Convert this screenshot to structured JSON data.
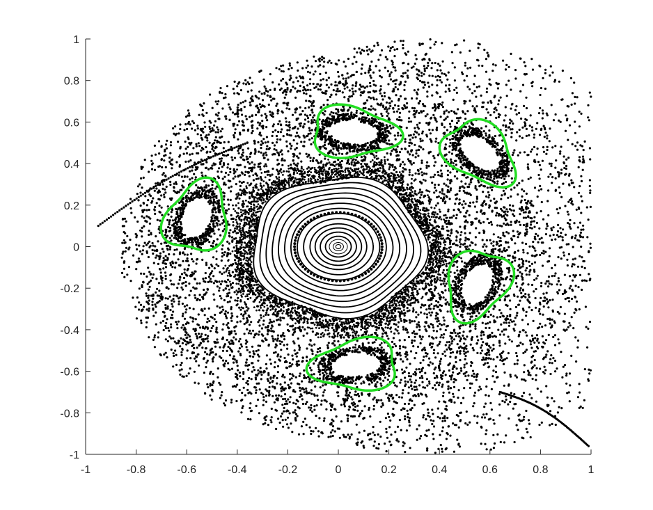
{
  "chart_data": {
    "type": "scatter",
    "title": "",
    "xlabel": "",
    "ylabel": "",
    "xlim": [
      -1,
      1
    ],
    "ylim": [
      -1,
      1
    ],
    "grid": false,
    "x_ticks": [
      -1,
      -0.8,
      -0.6,
      -0.4,
      -0.2,
      0,
      0.2,
      0.4,
      0.6,
      0.8,
      1
    ],
    "x_tick_labels": [
      "-1",
      "-0.8",
      "-0.6",
      "-0.4",
      "-0.2",
      "0",
      "0.2",
      "0.4",
      "0.6",
      "0.8",
      "1"
    ],
    "y_ticks": [
      1,
      0.8,
      0.6,
      0.4,
      0.2,
      0,
      -0.2,
      -0.4,
      -0.6,
      -0.8,
      -1
    ],
    "y_tick_labels": [
      "1",
      "0.8",
      "0.6",
      "0.4",
      "0.2",
      "0",
      "-0.2",
      "-0.4",
      "-0.6",
      "-0.8",
      "-1"
    ],
    "colors": {
      "points": "#000000",
      "islands": "#22dd22",
      "axes": "#262626"
    },
    "series": [
      {
        "kind": "central-invariant-curves",
        "center": [
          0,
          0
        ],
        "radii": [
          0.01,
          0.02,
          0.035,
          0.05,
          0.07,
          0.09,
          0.11,
          0.135,
          0.16,
          0.185,
          0.21,
          0.235,
          0.26,
          0.285,
          0.31,
          0.335
        ]
      },
      {
        "kind": "resonance-islands",
        "centers": [
          [
            0.06,
            0.55
          ],
          [
            0.56,
            0.45
          ],
          [
            -0.56,
            0.14
          ],
          [
            0.55,
            -0.18
          ],
          [
            0.07,
            -0.57
          ]
        ],
        "outline_color": "green"
      },
      {
        "kind": "chaotic-sea",
        "region_x": [
          -1,
          1
        ],
        "region_y": [
          -1,
          1
        ]
      },
      {
        "kind": "escape-tails",
        "segments": [
          {
            "from": [
              0.64,
              -0.7
            ],
            "to": [
              0.99,
              -0.96
            ]
          },
          {
            "from": [
              -0.36,
              0.5
            ],
            "to": [
              -0.95,
              0.1
            ]
          }
        ]
      }
    ]
  }
}
